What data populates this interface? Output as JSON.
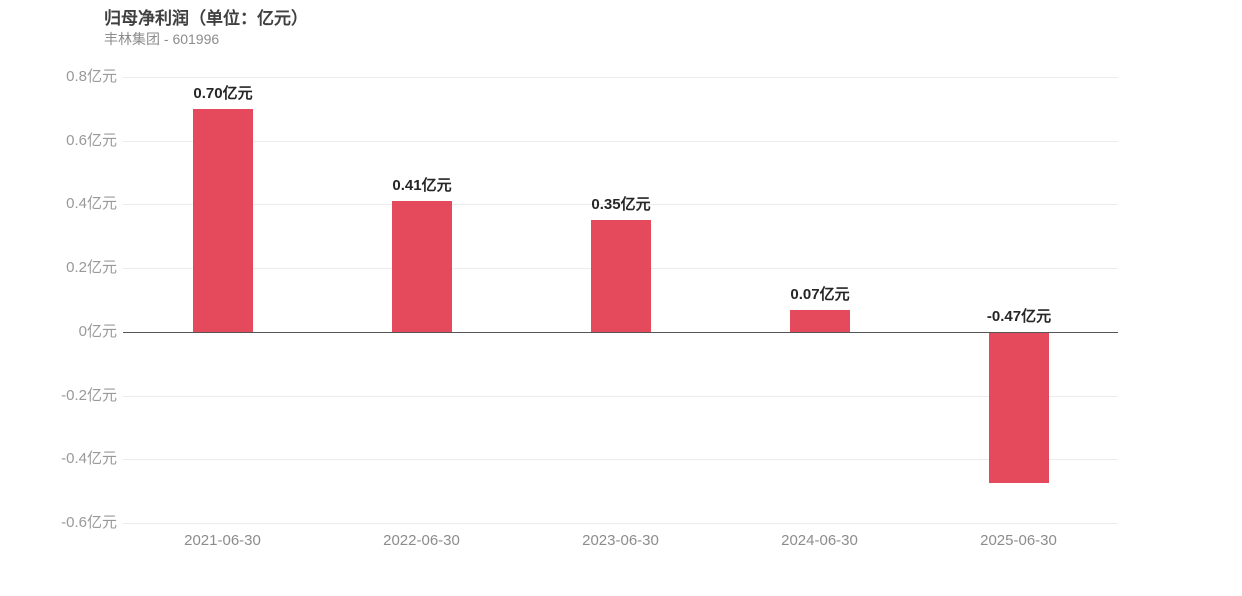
{
  "header": {
    "title": "归母净利润（单位：亿元）",
    "subtitle": "丰林集团 - 601996"
  },
  "chart_data": {
    "type": "bar",
    "title": "归母净利润（单位：亿元）",
    "subtitle": "丰林集团 - 601996",
    "series_name": "归母净利润",
    "unit": "亿元",
    "categories": [
      "2021-06-30",
      "2022-06-30",
      "2023-06-30",
      "2024-06-30",
      "2025-06-30"
    ],
    "values": [
      0.7,
      0.41,
      0.35,
      0.07,
      -0.47
    ],
    "value_labels": [
      "0.70亿元",
      "0.41亿元",
      "0.35亿元",
      "0.07亿元",
      "-0.47亿元"
    ],
    "y_tick_values": [
      0.8,
      0.6,
      0.4,
      0.2,
      0,
      -0.2,
      -0.4,
      -0.6
    ],
    "y_tick_labels": [
      "0.8亿元",
      "0.6亿元",
      "0.4亿元",
      "0.2亿元",
      "0亿元",
      "-0.2亿元",
      "-0.4亿元",
      "-0.6亿元"
    ],
    "ylim": [
      -0.6,
      0.8
    ],
    "xlabel": "",
    "ylabel": "",
    "grid": true,
    "legend": false,
    "colors": {
      "bar": "#e5495c",
      "grid": "#ececec",
      "zero_axis": "#555555",
      "y_tick_label": "#999999",
      "x_tick_label": "#8c8c8c",
      "value_label": "#262626",
      "title": "#404040",
      "subtitle": "#8c8c8c",
      "background": "#ffffff"
    }
  }
}
